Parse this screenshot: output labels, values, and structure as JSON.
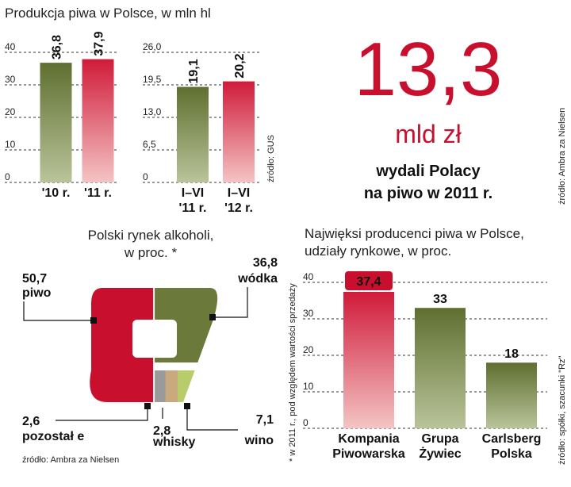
{
  "headline": {
    "value": "13,3",
    "unit": "mld zł",
    "line1": "wydali Polacy",
    "line2": "na piwo w 2011 r.",
    "source": "źródło: Ambra za Nielsen"
  },
  "colors": {
    "green": "#6b7a3a",
    "red": "#c8102e",
    "red_light": "#f2b8bb",
    "grey": "#9a9a9a",
    "tan": "#c9a97e",
    "lime": "#b9cc6a"
  },
  "chart_data": [
    {
      "type": "bar",
      "title": "Produkcja piwa w Polsce, w mln hl",
      "source": "źródło: GUS",
      "panels": [
        {
          "categories": [
            "'10 r.",
            "'11 r."
          ],
          "values": [
            36.8,
            37.9
          ],
          "value_labels": [
            "36,8",
            "37,9"
          ],
          "ylim": [
            0,
            40
          ],
          "yticks": [
            "0",
            "10",
            "20",
            "30",
            "40"
          ]
        },
        {
          "categories": [
            [
              "I–VI",
              "'11 r."
            ],
            [
              "I–VI",
              "'12 r."
            ]
          ],
          "values": [
            19.1,
            20.2
          ],
          "value_labels": [
            "19,1",
            "20,2"
          ],
          "ylim": [
            0,
            26
          ],
          "yticks": [
            "0",
            "6,5",
            "13,0",
            "19,5",
            "26,0"
          ]
        }
      ]
    },
    {
      "type": "pie",
      "title": [
        "Polski rynek alkoholi,",
        "w proc. *"
      ],
      "source": "źródło: Ambra za Nielsen",
      "footnote": "* w 2011 r., pod względem wartości sprzedaży",
      "slices": [
        {
          "name": "piwo",
          "value": 50.7,
          "label": "50,7"
        },
        {
          "name": "wódka",
          "value": 36.8,
          "label": "36,8"
        },
        {
          "name": "wino",
          "value": 7.1,
          "label": "7,1"
        },
        {
          "name": "whisky",
          "value": 2.8,
          "label": "2,8"
        },
        {
          "name": "pozostał e",
          "value": 2.6,
          "label": "2,6"
        }
      ]
    },
    {
      "type": "bar",
      "title": [
        "Najwięksi producenci piwa w Polsce,",
        "udziały rynkowe, w proc."
      ],
      "source": "źródło: spółki, szacunki \"Rz\"",
      "categories": [
        [
          "Kompania",
          "Piwowarska"
        ],
        [
          "Grupa",
          "Żywiec"
        ],
        [
          "Carlsberg",
          "Polska"
        ]
      ],
      "values": [
        37.4,
        33,
        18
      ],
      "value_labels": [
        "37,4",
        "33",
        "18"
      ],
      "ylim": [
        0,
        40
      ],
      "yticks": [
        "0",
        "10",
        "20",
        "30",
        "40"
      ]
    }
  ]
}
